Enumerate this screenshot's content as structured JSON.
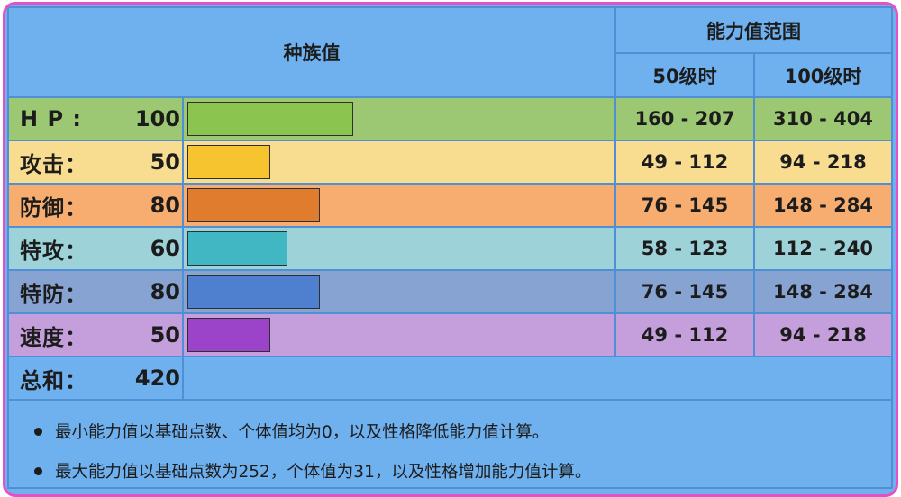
{
  "header": {
    "base_stats": "种族值",
    "stat_range": "能力值范围",
    "level50": "50级时",
    "level100": "100级时"
  },
  "colors": {
    "hp": {
      "row": "#9cc873",
      "bar": "#8bc44e"
    },
    "attack": {
      "row": "#f8dc90",
      "bar": "#f6c42f"
    },
    "defense": {
      "row": "#f6ad6f",
      "bar": "#e07c2e"
    },
    "sp_attack": {
      "row": "#9cd2d8",
      "bar": "#40b7c3"
    },
    "sp_defense": {
      "row": "#86a3d2",
      "bar": "#4f7fcf"
    },
    "speed": {
      "row": "#c49fdb",
      "bar": "#9c44c9"
    }
  },
  "stats": [
    {
      "key": "hp",
      "name": "H P :",
      "value": 100,
      "lv50": "160 - 207",
      "lv100": "310 - 404"
    },
    {
      "key": "attack",
      "name": "攻击：",
      "value": 50,
      "lv50": "49 - 112",
      "lv100": "94 - 218"
    },
    {
      "key": "defense",
      "name": "防御：",
      "value": 80,
      "lv50": "76 - 145",
      "lv100": "148 - 284"
    },
    {
      "key": "sp_attack",
      "name": "特攻：",
      "value": 60,
      "lv50": "58 - 123",
      "lv100": "112 - 240"
    },
    {
      "key": "sp_defense",
      "name": "特防：",
      "value": 80,
      "lv50": "76 - 145",
      "lv100": "148 - 284"
    },
    {
      "key": "speed",
      "name": "速度：",
      "value": 50,
      "lv50": "49 - 112",
      "lv100": "94 - 218"
    }
  ],
  "total": {
    "name": "总和：",
    "value": 420
  },
  "notes": [
    "最小能力值以基础点数、个体值均为0，以及性格降低能力值计算。",
    "最大能力值以基础点数为252，个体值为31，以及性格增加能力值计算。"
  ]
}
